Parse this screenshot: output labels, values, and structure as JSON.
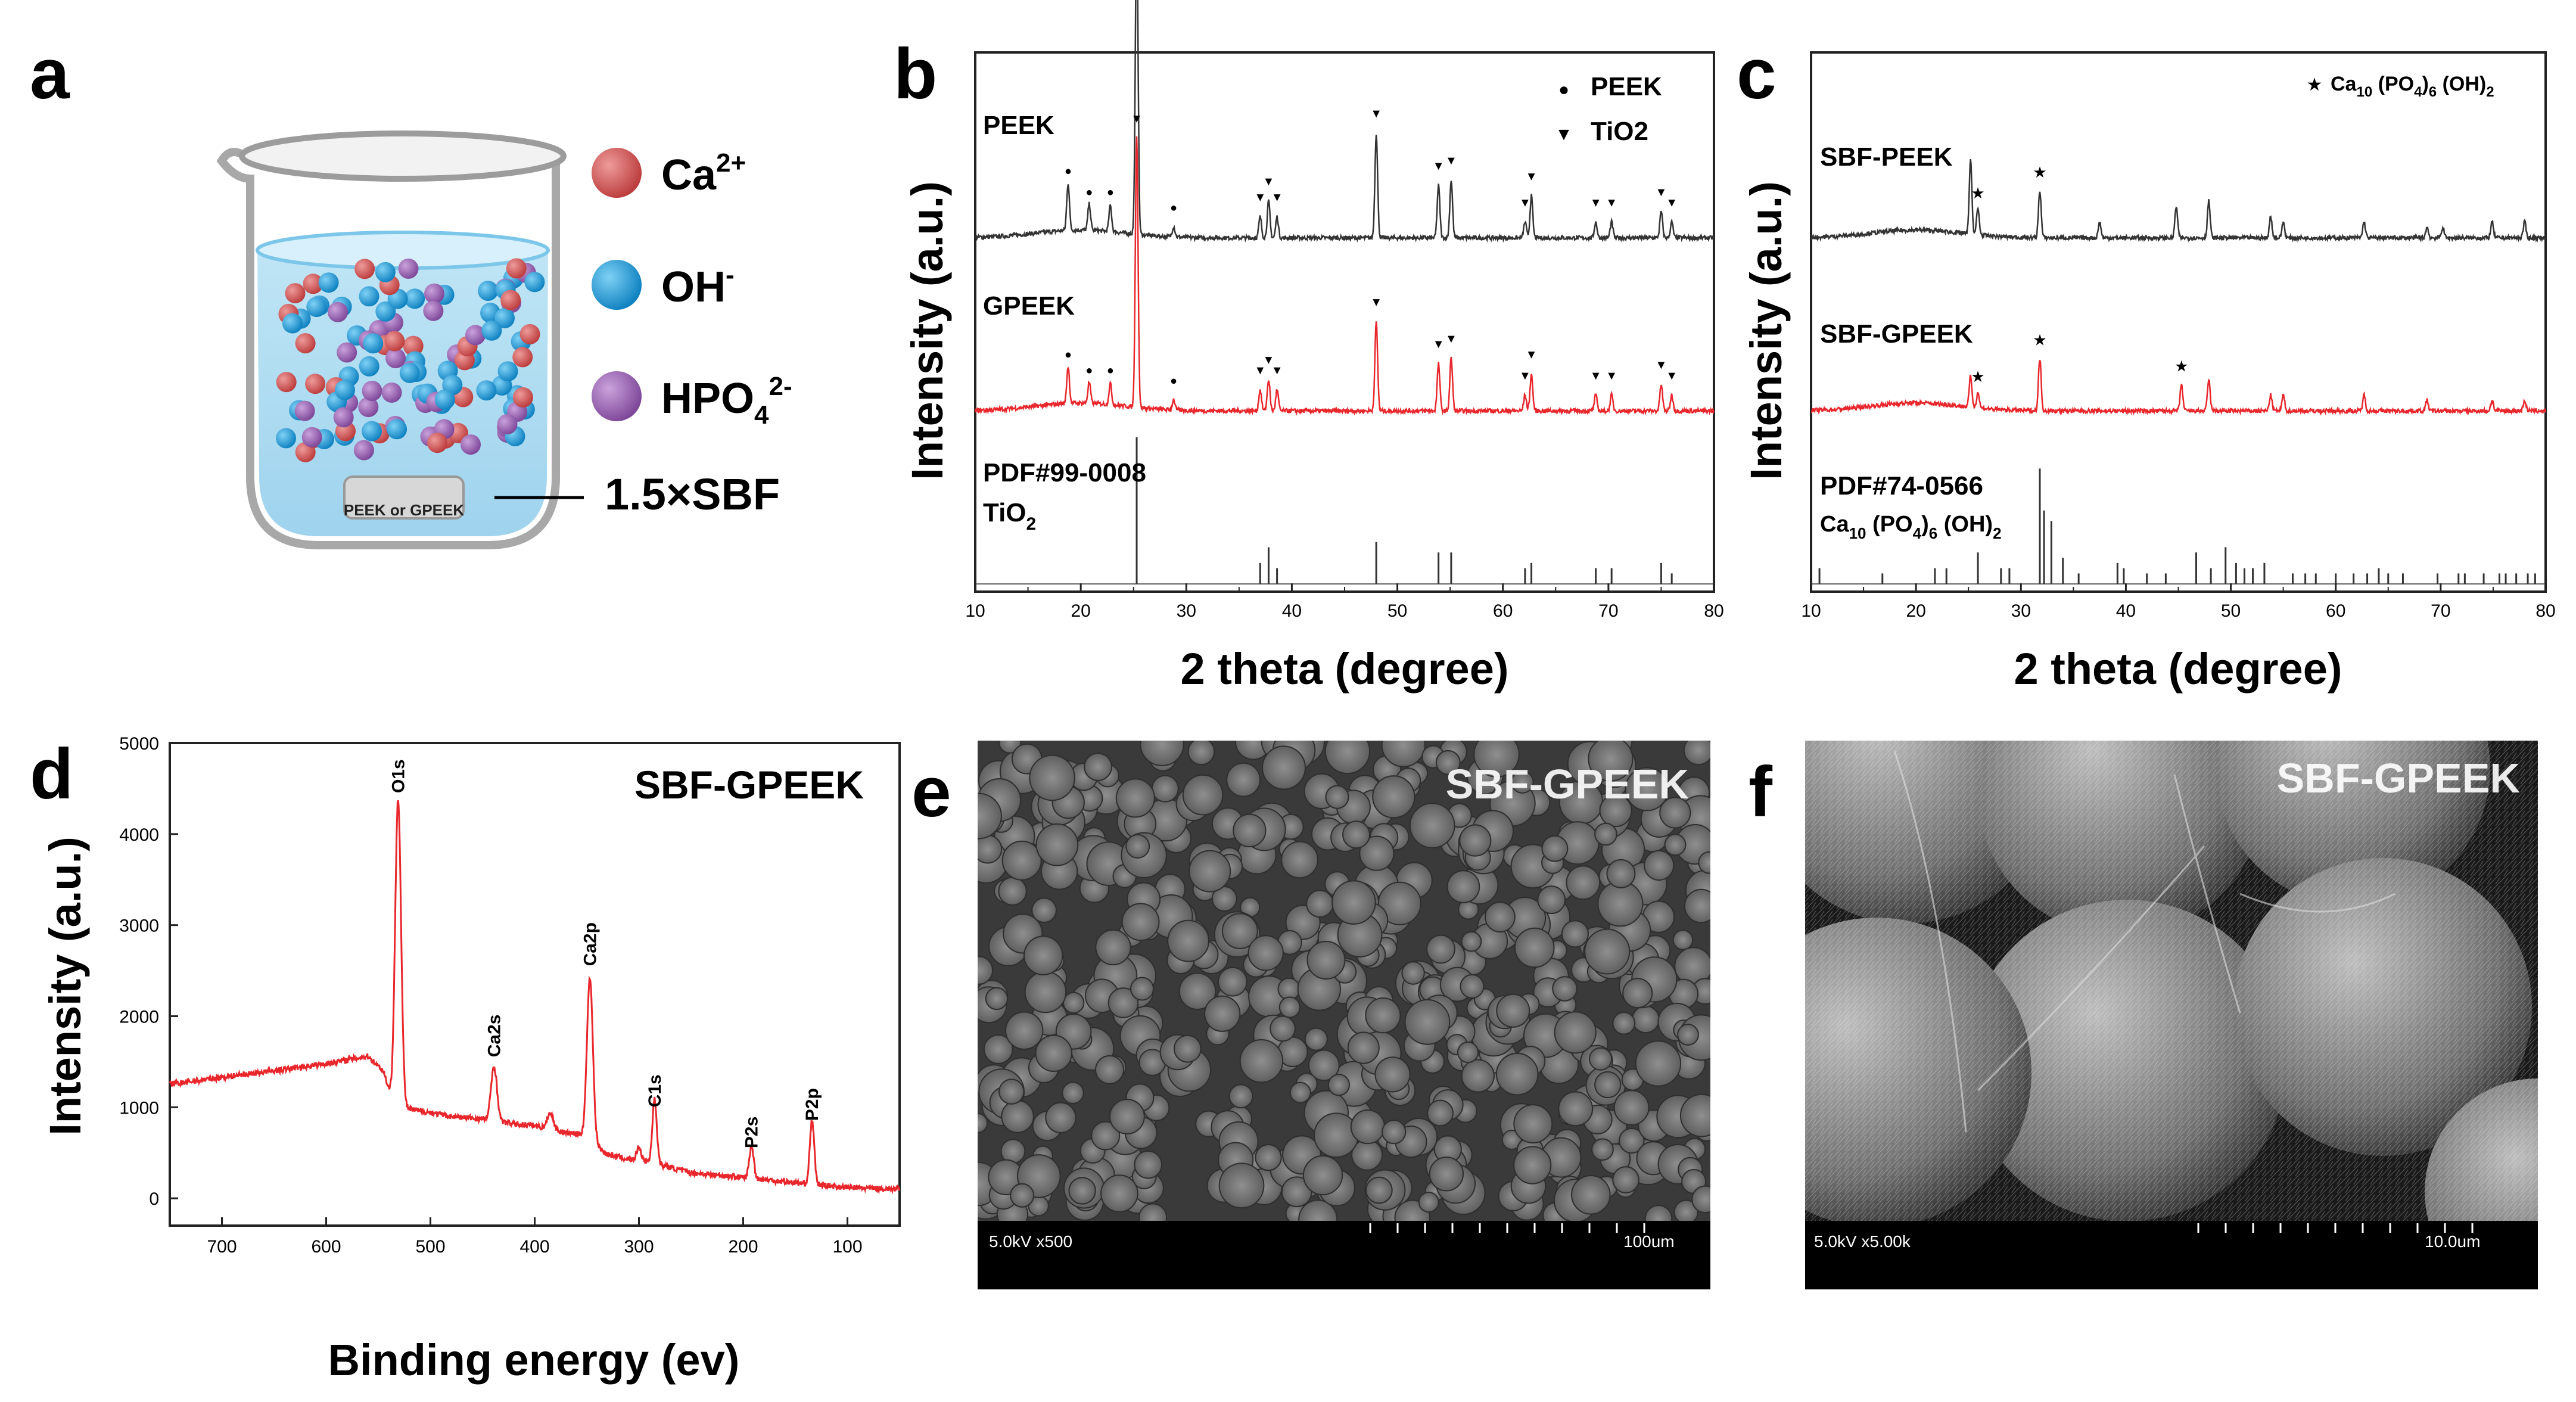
{
  "panels": {
    "a": {
      "letter": "a",
      "ions": [
        {
          "label": "Ca",
          "sup": "2+",
          "color": "#cf5a5a"
        },
        {
          "label": "OH",
          "sup": "-",
          "color": "#1b9ad6"
        },
        {
          "label": "HPO",
          "sub": "4",
          "sup": "2-",
          "color": "#9b63b3"
        }
      ],
      "sample_label": "PEEK or GPEEK",
      "solution_label": "1.5×SBF"
    },
    "b": {
      "letter": "b"
    },
    "c": {
      "letter": "c"
    },
    "d": {
      "letter": "d"
    },
    "e": {
      "letter": "e",
      "title": "SBF-GPEEK",
      "bar_left": "5.0kV x500",
      "bar_right": "100um"
    },
    "f": {
      "letter": "f",
      "title": "SBF-GPEEK",
      "bar_left": "5.0kV x5.00k",
      "bar_right": "10.0um"
    }
  },
  "colors": {
    "black_trace": "#333333",
    "red_trace": "#e8262b",
    "frame": "#222222"
  },
  "chart_data": [
    {
      "panel": "b",
      "type": "line",
      "xlabel": "2 theta (degree)",
      "ylabel": "Intensity (a.u.)",
      "xlim": [
        10,
        80
      ],
      "xticks": [
        10,
        20,
        30,
        40,
        50,
        60,
        70,
        80
      ],
      "legend": [
        {
          "marker": "●",
          "label": "PEEK"
        },
        {
          "marker": "▼",
          "label": "TiO2"
        }
      ],
      "series": [
        {
          "name": "PEEK",
          "color": "#333333",
          "offset": 0.66,
          "peaks": [
            [
              18.8,
              0.09
            ],
            [
              20.8,
              0.05
            ],
            [
              22.8,
              0.05
            ],
            [
              25.3,
              0.6
            ],
            [
              28.8,
              0.02
            ],
            [
              37.0,
              0.04
            ],
            [
              37.8,
              0.07
            ],
            [
              38.6,
              0.04
            ],
            [
              48.0,
              0.2
            ],
            [
              53.9,
              0.1
            ],
            [
              55.1,
              0.11
            ],
            [
              62.1,
              0.03
            ],
            [
              62.7,
              0.08
            ],
            [
              68.8,
              0.03
            ],
            [
              70.3,
              0.03
            ],
            [
              75.0,
              0.05
            ],
            [
              76.0,
              0.03
            ]
          ],
          "peek_marks": [
            18.8,
            20.8,
            22.8,
            28.8
          ],
          "tio2_marks": [
            25.3,
            37.0,
            37.8,
            38.6,
            48.0,
            53.9,
            55.1,
            62.1,
            62.7,
            68.8,
            70.3,
            75.0,
            76.0
          ]
        },
        {
          "name": "GPEEK",
          "color": "#e8262b",
          "offset": 0.33,
          "peaks": [
            [
              18.8,
              0.07
            ],
            [
              20.8,
              0.04
            ],
            [
              22.8,
              0.04
            ],
            [
              25.3,
              0.52
            ],
            [
              28.8,
              0.02
            ],
            [
              37.0,
              0.04
            ],
            [
              37.8,
              0.06
            ],
            [
              38.6,
              0.04
            ],
            [
              48.0,
              0.17
            ],
            [
              53.9,
              0.09
            ],
            [
              55.1,
              0.1
            ],
            [
              62.1,
              0.03
            ],
            [
              62.7,
              0.07
            ],
            [
              68.8,
              0.03
            ],
            [
              70.3,
              0.03
            ],
            [
              75.0,
              0.05
            ],
            [
              76.0,
              0.03
            ]
          ],
          "peek_marks": [
            18.8,
            20.8,
            22.8,
            28.8
          ],
          "tio2_marks": [
            25.3,
            37.0,
            37.8,
            38.6,
            48.0,
            53.9,
            55.1,
            62.1,
            62.7,
            68.8,
            70.3,
            75.0,
            76.0
          ]
        },
        {
          "name": "PDF#99-0008",
          "color": "#333333",
          "offset": 0.0,
          "type": "stick",
          "sticks": [
            [
              25.3,
              0.28
            ],
            [
              37.0,
              0.04
            ],
            [
              37.8,
              0.07
            ],
            [
              38.6,
              0.03
            ],
            [
              48.0,
              0.08
            ],
            [
              53.9,
              0.06
            ],
            [
              55.1,
              0.06
            ],
            [
              62.1,
              0.03
            ],
            [
              62.7,
              0.04
            ],
            [
              68.8,
              0.03
            ],
            [
              70.3,
              0.03
            ],
            [
              75.0,
              0.04
            ],
            [
              76.0,
              0.02
            ]
          ]
        }
      ],
      "labels": [
        "PEEK",
        "GPEEK",
        "PDF#99-0008",
        "TiO",
        "2"
      ]
    },
    {
      "panel": "c",
      "type": "line",
      "xlabel": "2 theta (degree)",
      "ylabel": "Intensity (a.u.)",
      "xlim": [
        10,
        80
      ],
      "xticks": [
        10,
        20,
        30,
        40,
        50,
        60,
        70,
        80
      ],
      "legend": [
        {
          "marker": "★",
          "label": "Ca10 (PO4)6 (OH)2"
        }
      ],
      "series": [
        {
          "name": "SBF-PEEK",
          "color": "#333333",
          "offset": 0.66,
          "peaks": [
            [
              25.2,
              0.14
            ],
            [
              25.9,
              0.05
            ],
            [
              31.8,
              0.09
            ],
            [
              37.5,
              0.03
            ],
            [
              44.8,
              0.06
            ],
            [
              47.9,
              0.07
            ],
            [
              53.8,
              0.04
            ],
            [
              55.0,
              0.03
            ],
            [
              62.7,
              0.03
            ],
            [
              68.7,
              0.02
            ],
            [
              70.2,
              0.02
            ],
            [
              74.9,
              0.03
            ],
            [
              78.0,
              0.03
            ]
          ],
          "star_marks": [
            25.9,
            31.8
          ]
        },
        {
          "name": "SBF-GPEEK",
          "color": "#e8262b",
          "offset": 0.33,
          "peaks": [
            [
              25.2,
              0.06
            ],
            [
              25.9,
              0.03
            ],
            [
              31.8,
              0.1
            ],
            [
              45.3,
              0.05
            ],
            [
              47.9,
              0.06
            ],
            [
              53.8,
              0.03
            ],
            [
              55.0,
              0.03
            ],
            [
              62.7,
              0.03
            ],
            [
              68.7,
              0.02
            ],
            [
              74.9,
              0.02
            ],
            [
              78.0,
              0.02
            ]
          ],
          "star_marks": [
            25.9,
            31.8,
            45.3
          ]
        },
        {
          "name": "PDF#74-0566",
          "color": "#333333",
          "offset": 0.0,
          "type": "stick",
          "sticks": [
            [
              10.8,
              0.03
            ],
            [
              16.8,
              0.02
            ],
            [
              21.8,
              0.03
            ],
            [
              22.9,
              0.03
            ],
            [
              25.9,
              0.06
            ],
            [
              28.1,
              0.03
            ],
            [
              28.9,
              0.03
            ],
            [
              31.8,
              0.22
            ],
            [
              32.2,
              0.14
            ],
            [
              32.9,
              0.12
            ],
            [
              34.0,
              0.05
            ],
            [
              35.5,
              0.02
            ],
            [
              39.2,
              0.04
            ],
            [
              39.8,
              0.03
            ],
            [
              42.0,
              0.02
            ],
            [
              43.8,
              0.02
            ],
            [
              46.7,
              0.06
            ],
            [
              48.1,
              0.03
            ],
            [
              49.5,
              0.07
            ],
            [
              50.5,
              0.04
            ],
            [
              51.3,
              0.03
            ],
            [
              52.1,
              0.03
            ],
            [
              53.2,
              0.04
            ],
            [
              55.9,
              0.02
            ],
            [
              57.1,
              0.02
            ],
            [
              58.1,
              0.02
            ],
            [
              60.0,
              0.02
            ],
            [
              61.7,
              0.02
            ],
            [
              63.0,
              0.02
            ],
            [
              64.1,
              0.03
            ],
            [
              65.0,
              0.02
            ],
            [
              66.4,
              0.02
            ],
            [
              69.7,
              0.02
            ],
            [
              71.7,
              0.02
            ],
            [
              72.3,
              0.02
            ],
            [
              74.1,
              0.02
            ],
            [
              75.6,
              0.02
            ],
            [
              76.2,
              0.02
            ],
            [
              77.2,
              0.02
            ],
            [
              78.3,
              0.02
            ],
            [
              79.0,
              0.02
            ]
          ]
        }
      ],
      "labels": [
        "SBF-PEEK",
        "SBF-GPEEK",
        "PDF#74-0566",
        "Ca10 (PO4)6 (OH)2"
      ]
    },
    {
      "panel": "d",
      "type": "line",
      "title": "SBF-GPEEK",
      "xlabel": "Binding energy (ev)",
      "ylabel": "Intensity (a.u.)",
      "xlim": [
        750,
        50
      ],
      "ylim": [
        -300,
        5000
      ],
      "xticks": [
        700,
        600,
        500,
        400,
        300,
        200,
        100
      ],
      "yticks": [
        0,
        1000,
        2000,
        3000,
        4000,
        5000
      ],
      "series": [
        {
          "name": "SBF-GPEEK",
          "color": "#e8262b",
          "baseline": [
            [
              750,
              1250
            ],
            [
              700,
              1330
            ],
            [
              650,
              1400
            ],
            [
              600,
              1480
            ],
            [
              560,
              1560
            ],
            [
              545,
              1400
            ],
            [
              535,
              1000
            ],
            [
              520,
              980
            ],
            [
              480,
              900
            ],
            [
              450,
              870
            ],
            [
              420,
              820
            ],
            [
              400,
              800
            ],
            [
              370,
              720
            ],
            [
              355,
              700
            ],
            [
              330,
              480
            ],
            [
              310,
              430
            ],
            [
              290,
              400
            ],
            [
              250,
              280
            ],
            [
              200,
              230
            ],
            [
              150,
              170
            ],
            [
              100,
              120
            ],
            [
              50,
              100
            ]
          ],
          "peaks": [
            [
              531,
              3400,
              4
            ],
            [
              532,
              0,
              2
            ],
            [
              439,
              600,
              4
            ],
            [
              347,
              1800,
              4
            ],
            [
              285,
              700,
              3
            ],
            [
              192,
              350,
              3
            ],
            [
              134,
              700,
              3
            ],
            [
              385,
              180,
              4
            ],
            [
              300,
              150,
              3
            ]
          ]
        }
      ],
      "annotations": [
        {
          "label": "O1s",
          "x": 531,
          "y": 4450
        },
        {
          "label": "Ca2s",
          "x": 439,
          "y": 1550
        },
        {
          "label": "Ca2p",
          "x": 347,
          "y": 2550
        },
        {
          "label": "C1s",
          "x": 285,
          "y": 1000
        },
        {
          "label": "P2s",
          "x": 192,
          "y": 550
        },
        {
          "label": "P2p",
          "x": 134,
          "y": 850
        }
      ]
    }
  ]
}
